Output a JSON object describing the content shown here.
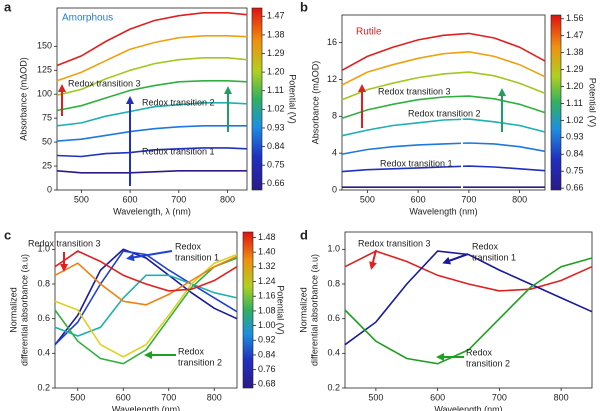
{
  "chart_data": [
    {
      "type": "line",
      "label": "a",
      "inset_label": "Amorphous",
      "inset_color": "#1f7fd0",
      "xlabel": "Wavelength, λ (nm)",
      "ylabel": "Absorbance (mΔOD)",
      "xlim": [
        450,
        840
      ],
      "xticks": [
        500,
        600,
        700,
        800
      ],
      "ylim": [
        0,
        190
      ],
      "yticks": [
        0,
        25,
        50,
        75,
        100,
        125,
        150
      ],
      "x": [
        450,
        500,
        550,
        600,
        650,
        700,
        750,
        800,
        840
      ],
      "series": [
        {
          "color": "#2b1a8a",
          "values": [
            20,
            18,
            18,
            18,
            19,
            20,
            20,
            20,
            20
          ]
        },
        {
          "color": "#2030c0",
          "values": [
            36,
            35,
            38,
            39,
            42,
            43,
            44,
            44,
            43
          ]
        },
        {
          "color": "#1e78e0",
          "values": [
            51,
            53,
            57,
            61,
            64,
            66,
            67,
            67,
            67
          ]
        },
        {
          "color": "#20b0b0",
          "values": [
            67,
            70,
            77,
            82,
            87,
            89,
            91,
            91,
            90
          ]
        },
        {
          "color": "#30b040",
          "values": [
            83,
            88,
            96,
            104,
            109,
            113,
            114,
            114,
            113
          ]
        },
        {
          "color": "#a0c820",
          "values": [
            99,
            105,
            116,
            125,
            132,
            136,
            138,
            138,
            136
          ]
        },
        {
          "color": "#f0a010",
          "values": [
            114,
            123,
            135,
            147,
            154,
            159,
            161,
            161,
            160
          ]
        },
        {
          "color": "#e02020",
          "values": [
            130,
            140,
            155,
            168,
            177,
            182,
            185,
            185,
            183
          ]
        }
      ],
      "annotations": [
        "Redox transition 3",
        "Redox transition 2",
        "Redox transition 1"
      ],
      "colorbar": {
        "label": "Potential (V)",
        "lim": [
          0.63,
          1.51
        ],
        "ticks": [
          1.47,
          1.38,
          1.29,
          {
            "value": 1.2,
            "label": "1.20"
          },
          1.11,
          1.02,
          0.93,
          0.84,
          0.75,
          0.66
        ]
      }
    },
    {
      "type": "line",
      "label": "b",
      "inset_label": "Rutile",
      "inset_color": "#e02020",
      "xlabel": "Wavelength (nm)",
      "ylabel": "Absorbance (mΔOD)",
      "xlim": [
        450,
        850
      ],
      "xticks": [
        500,
        600,
        700,
        800
      ],
      "ylim": [
        0,
        19
      ],
      "yticks": [
        0,
        4,
        8,
        12,
        16
      ],
      "x": [
        450,
        500,
        550,
        600,
        650,
        700,
        750,
        800,
        850
      ],
      "series": [
        {
          "color": "#2b1a8a",
          "values": [
            0.3,
            0.3,
            0.3,
            0.3,
            0.3,
            0.3,
            0.3,
            0.3,
            0.3
          ]
        },
        {
          "color": "#2030c0",
          "values": [
            2,
            2.2,
            2.3,
            2.4,
            2.5,
            2.6,
            2.5,
            2.3,
            2.1
          ]
        },
        {
          "color": "#1e78e0",
          "values": [
            3.9,
            4.4,
            4.7,
            4.9,
            5,
            5.1,
            5,
            4.7,
            4.2
          ]
        },
        {
          "color": "#20b0b0",
          "values": [
            5.9,
            6.5,
            7,
            7.3,
            7.6,
            7.7,
            7.4,
            7,
            6.3
          ]
        },
        {
          "color": "#30b040",
          "values": [
            7.8,
            8.7,
            9.3,
            9.8,
            10.1,
            10.2,
            9.9,
            9.3,
            8.4
          ]
        },
        {
          "color": "#a0c820",
          "values": [
            9.8,
            10.9,
            11.6,
            12.2,
            12.6,
            12.8,
            12.4,
            11.6,
            10.5
          ]
        },
        {
          "color": "#f0a010",
          "values": [
            11.4,
            12.8,
            13.6,
            14.3,
            14.8,
            15,
            14.5,
            13.6,
            12.3
          ]
        },
        {
          "color": "#e02020",
          "values": [
            13,
            14.5,
            15.5,
            16.3,
            16.8,
            17,
            16.5,
            15.5,
            14
          ]
        }
      ],
      "annotations": [
        "Redox transition 3",
        "Redox transition  2",
        "Redox transition 1"
      ],
      "colorbar": {
        "label": "Potential (V)",
        "lim": [
          0.65,
          1.58
        ],
        "ticks": [
          1.56,
          1.47,
          1.38,
          1.29,
          {
            "value": 1.2,
            "label": "1.20"
          },
          1.11,
          1.02,
          0.93,
          0.84,
          0.75,
          0.66
        ]
      }
    },
    {
      "type": "line",
      "label": "c",
      "xlabel": "Wavelength (nm)",
      "ylabel": [
        "Normalized",
        "differential absorbance (a.u)"
      ],
      "xlim": [
        450,
        850
      ],
      "xticks": [
        500,
        600,
        700,
        800
      ],
      "ylim": [
        0.2,
        1.1
      ],
      "yticks": [
        0.2,
        0.4,
        0.6,
        0.8,
        {
          "value": 1,
          "label": "1.0"
        }
      ],
      "x": [
        450,
        500,
        550,
        600,
        650,
        700,
        750,
        800,
        850
      ],
      "series": [
        {
          "color": "#1a1a9a",
          "values": [
            0.45,
            0.62,
            0.88,
            1,
            0.95,
            0.85,
            0.75,
            0.66,
            0.6
          ]
        },
        {
          "color": "#2040d0",
          "values": [
            0.45,
            0.58,
            0.8,
            0.99,
            0.97,
            0.88,
            0.8,
            0.72,
            0.64
          ]
        },
        {
          "color": "#20b0b0",
          "values": [
            0.55,
            0.5,
            0.55,
            0.72,
            0.85,
            0.85,
            0.8,
            0.75,
            0.72
          ]
        },
        {
          "color": "#30b040",
          "values": [
            0.65,
            0.47,
            0.37,
            0.34,
            0.42,
            0.6,
            0.78,
            0.9,
            0.95
          ]
        },
        {
          "color": "#e0d020",
          "values": [
            0.7,
            0.65,
            0.45,
            0.38,
            0.45,
            0.62,
            0.8,
            0.92,
            0.97
          ]
        },
        {
          "color": "#f08010",
          "values": [
            0.85,
            0.92,
            0.8,
            0.7,
            0.68,
            0.74,
            0.82,
            0.9,
            0.96
          ]
        },
        {
          "color": "#e02020",
          "values": [
            0.9,
            0.99,
            0.93,
            0.85,
            0.8,
            0.76,
            0.77,
            0.82,
            0.9
          ]
        }
      ],
      "annotations": [
        "Redox transition 3",
        [
          "Redox",
          "transition 1"
        ],
        [
          "Redox",
          "transition 2"
        ]
      ],
      "colorbar": {
        "label": "Potential (V)",
        "lim": [
          0.66,
          1.51
        ],
        "ticks": [
          1.48,
          {
            "value": 1.4,
            "label": "1.40"
          },
          1.32,
          1.24,
          1.16,
          1.08,
          {
            "value": 1,
            "label": "1.00"
          },
          0.92,
          0.84,
          0.76,
          0.68
        ]
      }
    },
    {
      "type": "line",
      "label": "d",
      "xlabel": "Wavelength (nm)",
      "ylabel": [
        "Normalized",
        "differential absorbance (a.u)"
      ],
      "xlim": [
        450,
        850
      ],
      "xticks": [
        500,
        600,
        700,
        800
      ],
      "ylim": [
        0.2,
        1.1
      ],
      "yticks": [
        0.2,
        0.4,
        0.6,
        0.8,
        {
          "value": 1,
          "label": "1.0"
        }
      ],
      "x": [
        450,
        500,
        550,
        600,
        650,
        700,
        750,
        800,
        850
      ],
      "series": [
        {
          "color": "#e02020",
          "values": [
            0.9,
            0.99,
            0.93,
            0.85,
            0.8,
            0.76,
            0.77,
            0.82,
            0.9
          ]
        },
        {
          "color": "#1a1a9a",
          "values": [
            0.45,
            0.58,
            0.8,
            0.99,
            0.97,
            0.88,
            0.8,
            0.72,
            0.64
          ]
        },
        {
          "color": "#20a020",
          "values": [
            0.65,
            0.47,
            0.37,
            0.34,
            0.42,
            0.6,
            0.78,
            0.9,
            0.95
          ]
        }
      ],
      "annotations": [
        "Redox transition 3",
        [
          "Redox",
          "transition 1"
        ],
        [
          "Redox",
          "transition 2"
        ]
      ]
    }
  ]
}
